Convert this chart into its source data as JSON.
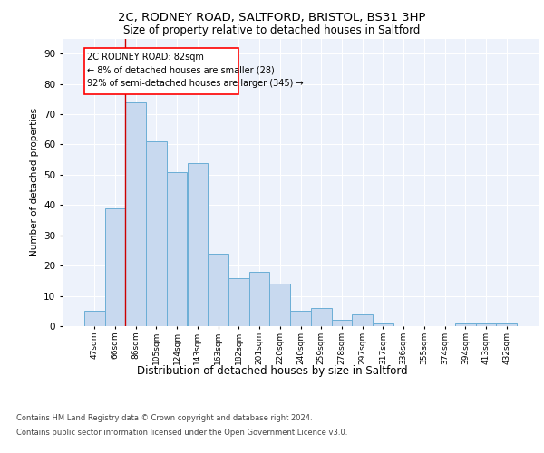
{
  "title_line1": "2C, RODNEY ROAD, SALTFORD, BRISTOL, BS31 3HP",
  "title_line2": "Size of property relative to detached houses in Saltford",
  "xlabel": "Distribution of detached houses by size in Saltford",
  "ylabel": "Number of detached properties",
  "categories": [
    "47sqm",
    "66sqm",
    "86sqm",
    "105sqm",
    "124sqm",
    "143sqm",
    "163sqm",
    "182sqm",
    "201sqm",
    "220sqm",
    "240sqm",
    "259sqm",
    "278sqm",
    "297sqm",
    "317sqm",
    "336sqm",
    "355sqm",
    "374sqm",
    "394sqm",
    "413sqm",
    "432sqm"
  ],
  "values": [
    5,
    39,
    74,
    61,
    51,
    54,
    24,
    16,
    18,
    14,
    5,
    6,
    2,
    4,
    1,
    0,
    0,
    0,
    1,
    1,
    1
  ],
  "bar_color": "#c8d9ef",
  "bar_edge_color": "#6baed6",
  "annotation_box_text": "2C RODNEY ROAD: 82sqm\n← 8% of detached houses are smaller (28)\n92% of semi-detached houses are larger (345) →",
  "ylim": [
    0,
    95
  ],
  "yticks": [
    0,
    10,
    20,
    30,
    40,
    50,
    60,
    70,
    80,
    90
  ],
  "background_color": "#edf2fb",
  "grid_color": "#ffffff",
  "footer_line1": "Contains HM Land Registry data © Crown copyright and database right 2024.",
  "footer_line2": "Contains public sector information licensed under the Open Government Licence v3.0."
}
